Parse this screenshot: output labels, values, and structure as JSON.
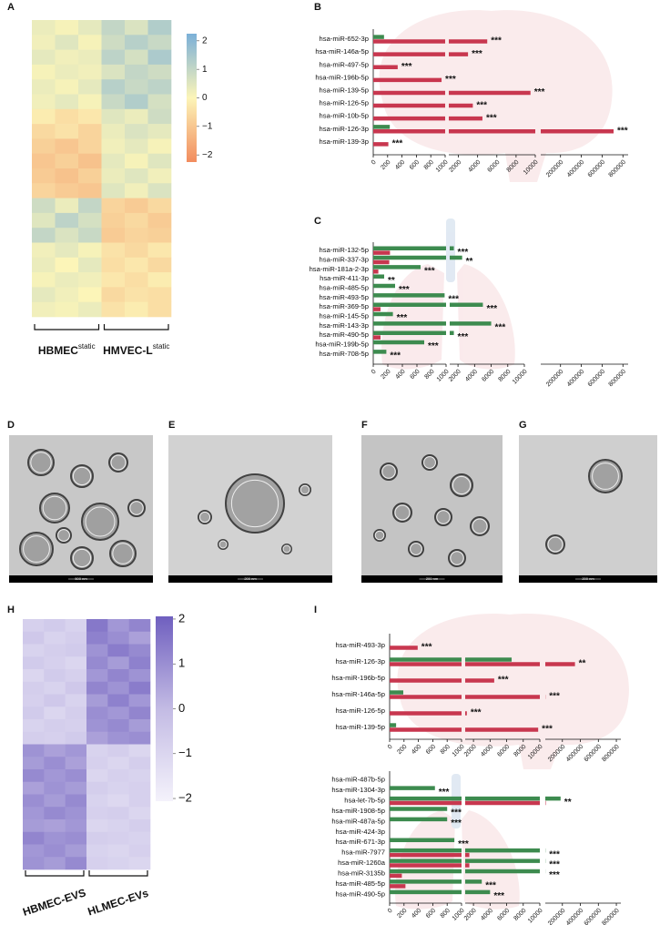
{
  "chart_data": [
    {
      "type": "heatmap",
      "panel": "A",
      "groups": [
        {
          "name": "HBMEC",
          "sup": "static"
        },
        {
          "name": "HMVEC-L",
          "sup": "static"
        }
      ],
      "colors": [
        "#f28c5e",
        "#fcf5b8",
        "#7bb0d8"
      ],
      "colorbar": {
        "ylim": [
          -2.25,
          2.25
        ],
        "yticks": [
          2,
          1,
          0,
          {
            "value": -1,
            "label": "−1"
          },
          {
            "value": -2,
            "label": "−2"
          }
        ]
      },
      "matrix": [
        [
          0.3,
          0.1,
          0.4,
          1.0,
          0.6,
          1.3
        ],
        [
          0.2,
          0.5,
          0.1,
          0.8,
          1.2,
          0.9
        ],
        [
          0.4,
          0.2,
          0.3,
          1.1,
          0.7,
          1.4
        ],
        [
          0.1,
          0.3,
          0.2,
          0.6,
          1.0,
          0.8
        ],
        [
          0.3,
          0.1,
          0.4,
          1.2,
          0.9,
          1.1
        ],
        [
          0.2,
          0.4,
          0.1,
          0.9,
          1.3,
          0.7
        ],
        [
          -0.2,
          -0.5,
          -0.3,
          0.5,
          0.3,
          0.8
        ],
        [
          -0.6,
          -0.4,
          -0.7,
          0.3,
          0.6,
          0.4
        ],
        [
          -0.8,
          -1.0,
          -0.7,
          0.2,
          0.4,
          0.1
        ],
        [
          -1.0,
          -0.8,
          -1.1,
          0.4,
          0.1,
          0.5
        ],
        [
          -0.9,
          -1.1,
          -0.8,
          0.3,
          0.5,
          0.2
        ],
        [
          -0.7,
          -0.9,
          -1.0,
          0.5,
          0.2,
          0.6
        ],
        [
          0.8,
          0.3,
          1.0,
          -0.7,
          -0.9,
          -0.6
        ],
        [
          0.5,
          1.1,
          0.7,
          -0.8,
          -0.6,
          -0.9
        ],
        [
          1.0,
          0.6,
          0.9,
          -0.9,
          -0.7,
          -0.8
        ],
        [
          0.2,
          0.4,
          0.1,
          -0.4,
          -0.6,
          -0.3
        ],
        [
          0.3,
          0.0,
          0.4,
          -0.5,
          -0.3,
          -0.6
        ],
        [
          0.1,
          0.3,
          0.2,
          -0.3,
          -0.5,
          -0.2
        ],
        [
          0.4,
          0.2,
          0.0,
          -0.6,
          -0.4,
          -0.5
        ],
        [
          0.2,
          0.1,
          0.3,
          -0.4,
          -0.2,
          -0.5
        ]
      ]
    },
    {
      "type": "broken-bar",
      "panel": "B",
      "categories": [
        "hsa-miR-652-3p",
        "hsa-miR-146a-5p",
        "hsa-miR-497-5p",
        "hsa-miR-196b-5p",
        "hsa-miR-139-5p",
        "hsa-miR-126-5p",
        "hsa-miR-10b-5p",
        "hsa-miR-126-3p",
        "hsa-miR-139-3p"
      ],
      "series": [
        {
          "color": "#3d8b4f",
          "values": [
            150,
            null,
            null,
            null,
            null,
            null,
            null,
            230,
            null
          ]
        },
        {
          "color": "#c8374f",
          "values": [
            5000,
            3000,
            340,
            950,
            9500,
            3500,
            4500,
            710000,
            210
          ]
        }
      ],
      "annotations": [
        "***",
        "***",
        "***",
        "***",
        "***",
        "***",
        "***",
        "***",
        "***"
      ],
      "segments": [
        {
          "xlim": [
            0,
            1000
          ],
          "xticks": [
            0,
            200,
            400,
            600,
            800,
            1000
          ]
        },
        {
          "xlim": [
            1000,
            10000
          ],
          "xticks": [
            2000,
            4000,
            6000,
            8000,
            10000
          ]
        },
        {
          "xlim": [
            10000,
            850000
          ],
          "xticks": [
            200000,
            400000,
            600000,
            800000
          ]
        }
      ]
    },
    {
      "type": "broken-bar",
      "panel": "C",
      "categories": [
        "hsa-miR-132-5p",
        "hsa-miR-337-3p",
        "hsa-miR-181a-2-3p",
        "hsa-miR-411-3p",
        "hsa-miR-485-5p",
        "hsa-miR-493-5p",
        "hsa-miR-369-5p",
        "hsa-miR-145-5p",
        "hsa-miR-143-3p",
        "hsa-miR-490-5p",
        "hsa-miR-199b-5p",
        "hsa-miR-708-5p"
      ],
      "series": [
        {
          "color": "#3d8b4f",
          "values": [
            1500,
            2500,
            650,
            150,
            300,
            980,
            5000,
            270,
            6000,
            1500,
            700,
            180
          ]
        },
        {
          "color": "#c8374f",
          "values": [
            230,
            220,
            70,
            null,
            null,
            null,
            100,
            null,
            null,
            100,
            null,
            null
          ]
        }
      ],
      "annotations": [
        "***",
        "**",
        "***",
        "**",
        "***",
        "***",
        "***",
        "***",
        "***",
        "***",
        "***",
        "***"
      ],
      "segments": [
        {
          "xlim": [
            0,
            1000
          ],
          "xticks": [
            0,
            200,
            400,
            600,
            800,
            1000
          ]
        },
        {
          "xlim": [
            1000,
            10000
          ],
          "xticks": [
            2000,
            4000,
            6000,
            8000,
            10000
          ]
        },
        {
          "xlim": [
            10000,
            850000
          ],
          "xticks": [
            200000,
            400000,
            600000,
            800000
          ]
        }
      ]
    },
    {
      "type": "heatmap",
      "panel": "H",
      "groups": [
        {
          "name": "HBMEC-EVS"
        },
        {
          "name": "HLMEC-EVs"
        }
      ],
      "colors": [
        "#f4f2fb",
        "#c3bbe4",
        "#6f5fbf"
      ],
      "colorbar": {
        "ylim": [
          -2.06,
          2.06
        ],
        "yticks": [
          2,
          1,
          0,
          {
            "value": -1,
            "label": "−1"
          },
          {
            "value": -2,
            "label": "−2"
          }
        ]
      },
      "matrix": [
        [
          -0.8,
          -0.6,
          -0.9,
          1.5,
          0.8,
          1.2
        ],
        [
          -0.5,
          -0.9,
          -0.7,
          1.3,
          1.0,
          0.6
        ],
        [
          -0.9,
          -0.7,
          -0.6,
          0.9,
          1.4,
          1.1
        ],
        [
          -0.6,
          -0.8,
          -1.0,
          1.1,
          0.7,
          1.3
        ],
        [
          -1.0,
          -0.6,
          -0.8,
          0.8,
          1.2,
          0.9
        ],
        [
          -0.7,
          -0.9,
          -0.5,
          1.2,
          0.9,
          1.4
        ],
        [
          -0.8,
          -0.5,
          -0.9,
          0.7,
          1.3,
          0.8
        ],
        [
          -0.6,
          -1.0,
          -0.7,
          1.0,
          0.8,
          1.2
        ],
        [
          -0.9,
          -0.7,
          -0.8,
          0.9,
          1.1,
          0.7
        ],
        [
          -0.7,
          -0.8,
          -0.6,
          0.6,
          0.9,
          1.0
        ],
        [
          0.9,
          0.6,
          0.8,
          -0.9,
          -0.7,
          -1.0
        ],
        [
          0.7,
          1.0,
          0.6,
          -0.8,
          -1.0,
          -0.7
        ],
        [
          1.1,
          0.8,
          1.0,
          -1.0,
          -0.8,
          -0.9
        ],
        [
          0.6,
          0.9,
          0.7,
          -0.7,
          -0.9,
          -0.8
        ],
        [
          1.0,
          0.7,
          1.1,
          -0.9,
          -1.1,
          -0.8
        ],
        [
          0.8,
          1.1,
          0.9,
          -0.8,
          -0.7,
          -1.0
        ],
        [
          0.7,
          0.6,
          0.8,
          -1.0,
          -0.9,
          -0.7
        ],
        [
          1.2,
          0.9,
          1.0,
          -0.7,
          -0.8,
          -0.9
        ],
        [
          0.8,
          1.0,
          0.7,
          -0.9,
          -1.0,
          -0.8
        ],
        [
          0.9,
          0.7,
          1.1,
          -0.8,
          -0.9,
          -1.0
        ]
      ]
    },
    {
      "type": "broken-bar",
      "panel": "I",
      "categories": [
        "hsa-miR-493-3p",
        "hsa-miR-126-3p",
        "hsa-miR-196b-5p",
        "hsa-miR-146a-5p",
        "hsa-miR-126-5p",
        "hsa-miR-139-5p"
      ],
      "series": [
        {
          "color": "#3d8b4f",
          "values": [
            null,
            6600,
            null,
            190,
            null,
            90
          ]
        },
        {
          "color": "#c8374f",
          "values": [
            390,
            340000,
            4500,
            12000,
            1200,
            9800
          ]
        }
      ],
      "annotations": [
        "***",
        "**",
        "***",
        "***",
        "***",
        "***"
      ],
      "segments": [
        {
          "xlim": [
            0,
            1000
          ],
          "xticks": [
            0,
            200,
            400,
            600,
            800,
            1000
          ]
        },
        {
          "xlim": [
            1000,
            10000
          ],
          "xticks": [
            2000,
            4000,
            6000,
            8000,
            10000
          ]
        },
        {
          "xlim": [
            10000,
            850000
          ],
          "xticks": [
            200000,
            400000,
            600000,
            800000
          ]
        }
      ]
    },
    {
      "type": "broken-bar",
      "categories": [
        "hsa-miR-487b-5p",
        "hsa-miR-1304-3p",
        "hsa-let-7b-5p",
        "hsa-miR-1908-5p",
        "hsa-miR-487a-5p",
        "hsa-miR-424-3p",
        "hsa-miR-671-3p",
        "hsa-miR-7977",
        "hsa-miR-1260a",
        "hsa-miR-3135b",
        "hsa-miR-485-5p",
        "hsa-miR-490-5p"
      ],
      "series": [
        {
          "color": "#3d8b4f",
          "values": [
            null,
            630,
            180000,
            800,
            800,
            null,
            900,
            12000,
            12000,
            11000,
            3000,
            4000
          ]
        },
        {
          "color": "#c8374f",
          "values": [
            null,
            null,
            15000,
            null,
            null,
            null,
            null,
            1500,
            1500,
            170,
            220,
            null
          ]
        }
      ],
      "annotations": [
        null,
        "***",
        "**",
        "***",
        "***",
        null,
        "***",
        "***",
        "***",
        "***",
        "***",
        "***"
      ],
      "segments": [
        {
          "xlim": [
            0,
            1000
          ],
          "xticks": [
            0,
            200,
            400,
            600,
            800,
            1000
          ]
        },
        {
          "xlim": [
            1000,
            10000
          ],
          "xticks": [
            2000,
            4000,
            6000,
            8000,
            10000
          ]
        },
        {
          "xlim": [
            10000,
            850000
          ],
          "xticks": [
            200000,
            400000,
            600000,
            800000
          ]
        }
      ]
    }
  ],
  "micrographs": [
    {
      "panel": "D",
      "scale_bar": "500 nm"
    },
    {
      "panel": "E",
      "scale_bar": "200 nm"
    },
    {
      "panel": "F",
      "scale_bar": "200 nm"
    },
    {
      "panel": "G",
      "scale_bar": "200 nm"
    }
  ]
}
